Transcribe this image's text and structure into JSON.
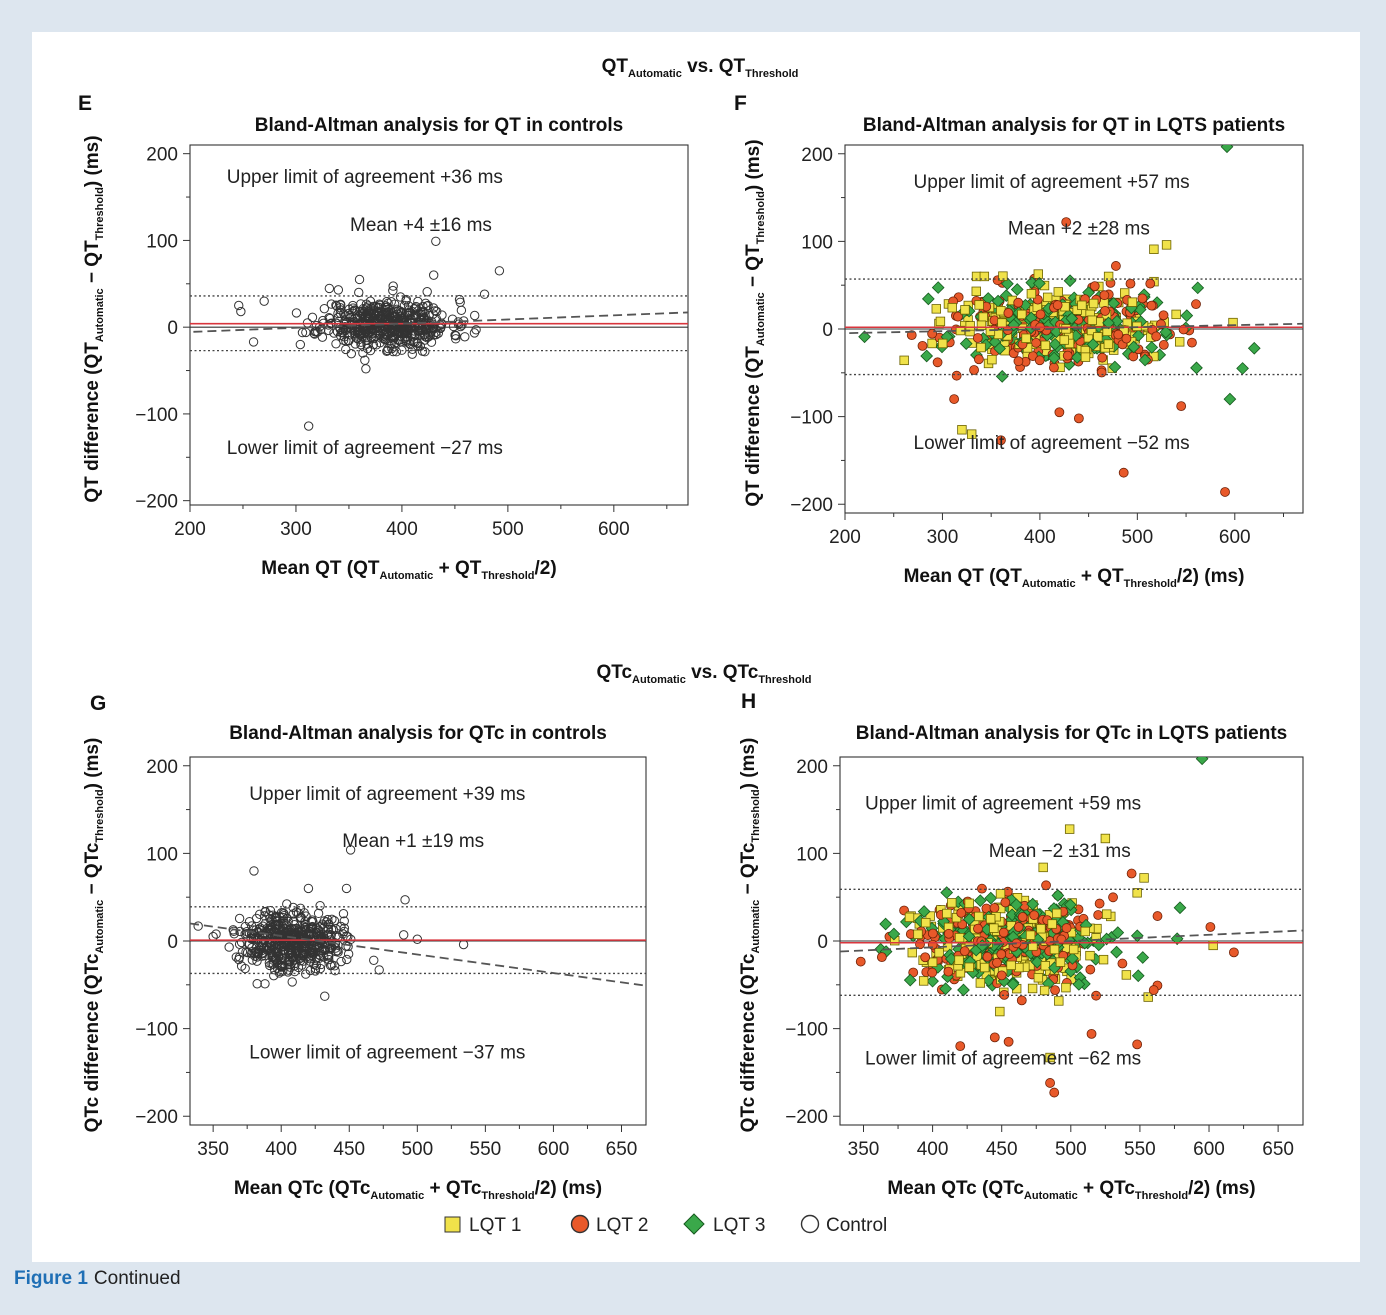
{
  "figure_caption": {
    "label": "Figure 1",
    "text": "Continued"
  },
  "section_titles": [
    {
      "id": "qt",
      "parts": [
        [
          "QT",
          ""
        ],
        [
          "Automatic",
          "sub"
        ],
        [
          " vs. QT",
          ""
        ],
        [
          "Threshold",
          "sub"
        ]
      ]
    },
    {
      "id": "qtc",
      "parts": [
        [
          "QTc",
          ""
        ],
        [
          "Automatic",
          "sub"
        ],
        [
          " vs. QTc",
          ""
        ],
        [
          "Threshold",
          "sub"
        ]
      ]
    }
  ],
  "legend": [
    {
      "label": "LQT 1",
      "shape": "square",
      "color": "#f0e24a"
    },
    {
      "label": "LQT 2",
      "shape": "circle",
      "color": "#e8592a"
    },
    {
      "label": "LQT 3",
      "shape": "diamond",
      "color": "#3aa84a"
    },
    {
      "label": "Control",
      "shape": "circle",
      "color": "none"
    }
  ],
  "colors": {
    "mean_line": "#d9363e",
    "lq1": "#f0e24a",
    "lq2": "#e8592a",
    "lq3": "#3aa84a"
  },
  "chart_data": [
    {
      "panel": "E",
      "type": "scatter",
      "title": "Bland-Altman analysis for QT in controls",
      "xlabel_parts": [
        [
          "Mean QT (QT",
          ""
        ],
        [
          "Automatic",
          "sub"
        ],
        [
          " + QT",
          ""
        ],
        [
          "Threshold",
          "sub"
        ],
        [
          "/2)",
          ""
        ]
      ],
      "ylabel_parts": [
        [
          "QT difference (QT",
          ""
        ],
        [
          "Automatic",
          "sub"
        ],
        [
          " − QT",
          ""
        ],
        [
          "Threshold",
          "sub"
        ],
        [
          ") (ms)",
          ""
        ]
      ],
      "xlim": [
        200,
        670
      ],
      "ylim": [
        -205,
        210
      ],
      "xticks": [
        200,
        300,
        400,
        500,
        600
      ],
      "yticks": [
        -200,
        -100,
        0,
        100,
        200
      ],
      "upper_loa": 36,
      "lower_loa": -27,
      "mean": 4,
      "regression": [
        [
          190,
          -6
        ],
        [
          670,
          17
        ]
      ],
      "annotations": [
        {
          "text": "Upper limit of agreement +36 ms",
          "x": 365,
          "y": 166
        },
        {
          "text": "Mean +4 ±16 ms",
          "x": 418,
          "y": 111
        },
        {
          "text": "Lower limit of agreement −27 ms",
          "x": 365,
          "y": -146
        }
      ],
      "groups": [
        "control"
      ],
      "cloud": {
        "seed": 11,
        "n": 520,
        "xmean": 385,
        "xsd": 30,
        "ymean": 4,
        "ysd": 14
      },
      "outliers": [
        [
          312,
          -114
        ],
        [
          432,
          99
        ],
        [
          492,
          65
        ],
        [
          430,
          60
        ],
        [
          478,
          38
        ],
        [
          246,
          25
        ],
        [
          248,
          18
        ],
        [
          270,
          30
        ],
        [
          260,
          -17
        ],
        [
          366,
          -48
        ],
        [
          470,
          -3
        ],
        [
          360,
          55
        ],
        [
          415,
          -22
        ],
        [
          340,
          43
        ]
      ]
    },
    {
      "panel": "F",
      "type": "scatter",
      "title": "Bland-Altman analysis for QT in LQTS patients",
      "xlabel_parts": [
        [
          "Mean QT (QT",
          ""
        ],
        [
          "Automatic",
          "sub"
        ],
        [
          " + QT",
          ""
        ],
        [
          "Threshold",
          "sub"
        ],
        [
          "/2) (ms)",
          ""
        ]
      ],
      "ylabel_parts": [
        [
          "QT difference (QT",
          ""
        ],
        [
          "Automatic",
          "sub"
        ],
        [
          " − QT",
          ""
        ],
        [
          "Threshold",
          "sub"
        ],
        [
          ") (ms)",
          ""
        ]
      ],
      "xlim": [
        200,
        670
      ],
      "ylim": [
        -210,
        210
      ],
      "xticks": [
        200,
        300,
        400,
        500,
        600
      ],
      "yticks": [
        -200,
        -100,
        0,
        100,
        200
      ],
      "upper_loa": 57,
      "lower_loa": -52,
      "mean": 2,
      "regression": [
        [
          190,
          -5
        ],
        [
          670,
          6
        ]
      ],
      "annotations": [
        {
          "text": "Upper limit of agreement +57 ms",
          "x": 412,
          "y": 161
        },
        {
          "text": "Mean +2 ±28 ms",
          "x": 440,
          "y": 108
        },
        {
          "text": "Lower limit of agreement −52 ms",
          "x": 412,
          "y": -137
        }
      ],
      "groups": [
        "lq1",
        "lq2",
        "lq3"
      ],
      "cloud": {
        "seed": 23,
        "n": 600,
        "xmean": 420,
        "xsd": 55,
        "ymean": 2,
        "ysd": 22
      },
      "outliers": [
        [
          592,
          208,
          "lq3"
        ],
        [
          427,
          122,
          "lq2"
        ],
        [
          517,
          91,
          "lq1"
        ],
        [
          530,
          96,
          "lq1"
        ],
        [
          590,
          -186,
          "lq2"
        ],
        [
          486,
          -164,
          "lq2"
        ],
        [
          330,
          -120,
          "lq1"
        ],
        [
          320,
          -115,
          "lq1"
        ],
        [
          335,
          60,
          "lq1"
        ],
        [
          343,
          60,
          "lq1"
        ],
        [
          595,
          -80,
          "lq3"
        ],
        [
          620,
          -22,
          "lq3"
        ],
        [
          608,
          -45,
          "lq3"
        ],
        [
          562,
          47,
          "lq3"
        ],
        [
          478,
          72,
          "lq2"
        ],
        [
          312,
          -80,
          "lq2"
        ],
        [
          295,
          -38,
          "lq2"
        ],
        [
          545,
          -88,
          "lq2"
        ],
        [
          420,
          -95,
          "lq2"
        ],
        [
          440,
          -102,
          "lq2"
        ],
        [
          360,
          -127,
          "lq2"
        ]
      ]
    },
    {
      "panel": "G",
      "type": "scatter",
      "title": "Bland-Altman analysis for QTc in controls",
      "xlabel_parts": [
        [
          "Mean QTc (QTc",
          ""
        ],
        [
          "Automatic",
          "sub"
        ],
        [
          " + QTc",
          ""
        ],
        [
          "Threshold",
          "sub"
        ],
        [
          "/2) (ms)",
          ""
        ]
      ],
      "ylabel_parts": [
        [
          "QTc difference (QTc",
          ""
        ],
        [
          "Automatic",
          "sub"
        ],
        [
          " − QTc",
          ""
        ],
        [
          "Threshold",
          "sub"
        ],
        [
          ") (ms)",
          ""
        ]
      ],
      "xlim": [
        333,
        668
      ],
      "ylim": [
        -210,
        210
      ],
      "xticks": [
        350,
        400,
        450,
        500,
        550,
        600,
        650
      ],
      "yticks": [
        -200,
        -100,
        0,
        100,
        200
      ],
      "upper_loa": 39,
      "lower_loa": -37,
      "mean": 1,
      "regression": [
        [
          333,
          20
        ],
        [
          668,
          -51
        ]
      ],
      "annotations": [
        {
          "text": "Upper limit of agreement +39 ms",
          "x": 478,
          "y": 161
        },
        {
          "text": "Mean +1 ±19 ms",
          "x": 497,
          "y": 107
        },
        {
          "text": "Lower limit of agreement −37 ms",
          "x": 478,
          "y": -134
        }
      ],
      "groups": [
        "control"
      ],
      "cloud": {
        "seed": 37,
        "n": 520,
        "xmean": 408,
        "xsd": 18,
        "ymean": 1,
        "ysd": 17
      },
      "outliers": [
        [
          451,
          104,
          "control"
        ],
        [
          380,
          80,
          "control"
        ],
        [
          448,
          60,
          "control"
        ],
        [
          491,
          47,
          "control"
        ],
        [
          420,
          60,
          "control"
        ],
        [
          534,
          -4,
          "control"
        ],
        [
          500,
          2,
          "control"
        ],
        [
          490,
          7,
          "control"
        ],
        [
          472,
          -33,
          "control"
        ],
        [
          468,
          -22,
          "control"
        ],
        [
          339,
          17,
          "control"
        ],
        [
          350,
          5,
          "control"
        ],
        [
          432,
          -63,
          "control"
        ]
      ]
    },
    {
      "panel": "H",
      "type": "scatter",
      "title": "Bland-Altman analysis for QTc in LQTS patients",
      "xlabel_parts": [
        [
          "Mean QTc (QTc",
          ""
        ],
        [
          "Automatic",
          "sub"
        ],
        [
          " + QTc",
          ""
        ],
        [
          "Threshold",
          "sub"
        ],
        [
          "/2) (ms)",
          ""
        ]
      ],
      "ylabel_parts": [
        [
          "QTc difference (QTc",
          ""
        ],
        [
          "Automatic",
          "sub"
        ],
        [
          " − QTc",
          ""
        ],
        [
          "Threshold",
          "sub"
        ],
        [
          ") (ms)",
          ""
        ]
      ],
      "xlim": [
        333,
        668
      ],
      "ylim": [
        -210,
        210
      ],
      "xticks": [
        350,
        400,
        450,
        500,
        550,
        600,
        650
      ],
      "yticks": [
        -200,
        -100,
        0,
        100,
        200
      ],
      "upper_loa": 59,
      "lower_loa": -62,
      "mean": -2,
      "regression": [
        [
          333,
          -12
        ],
        [
          668,
          12
        ]
      ],
      "annotations": [
        {
          "text": "Upper limit of agreement +59 ms",
          "x": 451,
          "y": 150
        },
        {
          "text": "Mean −2 ±31 ms",
          "x": 492,
          "y": 96
        },
        {
          "text": "Lower limit of agreement −62 ms",
          "x": 451,
          "y": -141
        }
      ],
      "groups": [
        "lq1",
        "lq2",
        "lq3"
      ],
      "cloud": {
        "seed": 51,
        "n": 640,
        "xmean": 455,
        "xsd": 35,
        "ymean": -2,
        "ysd": 26
      },
      "outliers": [
        [
          595,
          208,
          "lq3"
        ],
        [
          525,
          117,
          "lq1"
        ],
        [
          480,
          84,
          "lq1"
        ],
        [
          544,
          77,
          "lq2"
        ],
        [
          553,
          72,
          "lq1"
        ],
        [
          548,
          55,
          "lq1"
        ],
        [
          579,
          38,
          "lq3"
        ],
        [
          601,
          16,
          "lq2"
        ],
        [
          603,
          -5,
          "lq1"
        ],
        [
          618,
          -13,
          "lq2"
        ],
        [
          556,
          -64,
          "lq1"
        ],
        [
          485,
          -162,
          "lq2"
        ],
        [
          488,
          -173,
          "lq2"
        ],
        [
          485,
          -133,
          "lq1"
        ],
        [
          548,
          -118,
          "lq2"
        ],
        [
          515,
          -106,
          "lq2"
        ],
        [
          420,
          -120,
          "lq2"
        ],
        [
          445,
          -110,
          "lq2"
        ],
        [
          455,
          -115,
          "lq2"
        ],
        [
          372,
          8,
          "lq3"
        ],
        [
          560,
          -56,
          "lq2"
        ]
      ]
    }
  ]
}
